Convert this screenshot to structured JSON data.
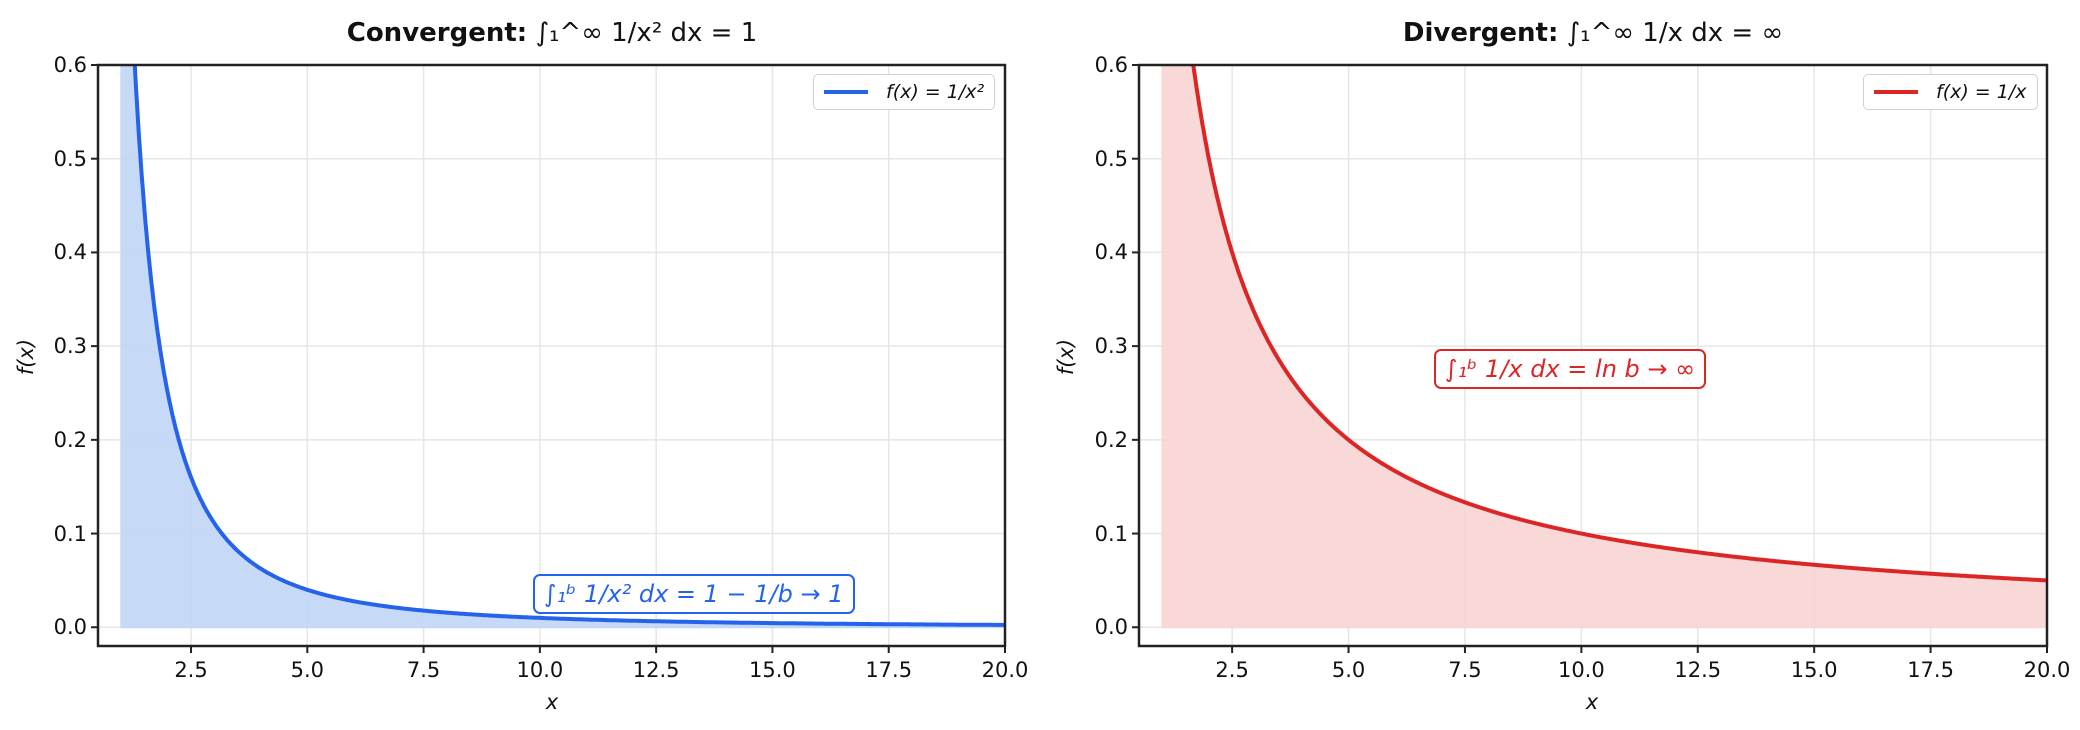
{
  "chart_data": [
    {
      "type": "area",
      "title": "Convergent: ∫₁^∞ 1/x² dx = 1",
      "title_bold": "Convergent:",
      "title_math": "∫₁^∞ (1/x²) dx = 1",
      "xlabel": "x",
      "ylabel": "f(x)",
      "xlim": [
        0.5,
        20.0
      ],
      "ylim": [
        -0.02,
        0.6
      ],
      "xticks": [
        "2.5",
        "5.0",
        "7.5",
        "10.0",
        "12.5",
        "15.0",
        "17.5",
        "20.0"
      ],
      "yticks": [
        "0.0",
        "0.1",
        "0.2",
        "0.3",
        "0.4",
        "0.5",
        "0.6"
      ],
      "grid": true,
      "legend": {
        "position": "upper right",
        "entries": [
          "f(x) = 1/x²"
        ]
      },
      "series": [
        {
          "name": "f(x) = 1/x²",
          "color": "#2563eb",
          "fill_color": "#c3d8f7",
          "function": "1/x^2",
          "x_start": 1,
          "x_end": 20,
          "x": [
            1,
            1.25,
            1.5,
            2,
            2.5,
            3,
            4,
            5,
            7.5,
            10,
            12.5,
            15,
            17.5,
            20
          ],
          "y": [
            1.0,
            0.64,
            0.444,
            0.25,
            0.16,
            0.111,
            0.0625,
            0.04,
            0.0178,
            0.01,
            0.0064,
            0.0044,
            0.0033,
            0.0025
          ]
        }
      ],
      "annotation": {
        "text": "∫₁ᵇ 1/x² dx = 1 − 1/b → 1",
        "color": "#2563eb"
      }
    },
    {
      "type": "area",
      "title": "Divergent: ∫₁^∞ 1/x dx = ∞",
      "title_bold": "Divergent:",
      "title_math": "∫₁^∞ (1/x) dx = ∞",
      "xlabel": "x",
      "ylabel": "f(x)",
      "xlim": [
        0.5,
        20.0
      ],
      "ylim": [
        -0.02,
        0.6
      ],
      "xticks": [
        "2.5",
        "5.0",
        "7.5",
        "10.0",
        "12.5",
        "15.0",
        "17.5",
        "20.0"
      ],
      "yticks": [
        "0.0",
        "0.1",
        "0.2",
        "0.3",
        "0.4",
        "0.5",
        "0.6"
      ],
      "grid": true,
      "legend": {
        "position": "upper right",
        "entries": [
          "f(x) = 1/x"
        ]
      },
      "series": [
        {
          "name": "f(x) = 1/x",
          "color": "#dc2626",
          "fill_color": "#f9d6d6",
          "function": "1/x",
          "x_start": 1,
          "x_end": 20,
          "x": [
            1,
            1.5,
            2,
            2.5,
            3,
            4,
            5,
            7.5,
            10,
            12.5,
            15,
            17.5,
            20
          ],
          "y": [
            1.0,
            0.667,
            0.5,
            0.4,
            0.333,
            0.25,
            0.2,
            0.133,
            0.1,
            0.08,
            0.0667,
            0.0571,
            0.05
          ]
        }
      ],
      "annotation": {
        "text": "∫₁ᵇ 1/x dx = ln b → ∞",
        "color": "#dc2626"
      }
    }
  ],
  "left": {
    "title_bold": "Convergent:",
    "title_math": "∫₁^∞ 1/x² dx = 1",
    "legend": "f(x) = 1/x²",
    "annotation": "∫₁ᵇ 1/x² dx = 1 − 1/b → 1",
    "xlabel": "x",
    "ylabel": "f(x)"
  },
  "right": {
    "title_bold": "Divergent:",
    "title_math": "∫₁^∞ 1/x dx = ∞",
    "legend": "f(x) = 1/x",
    "annotation": "∫₁ᵇ 1/x dx = ln b → ∞",
    "xlabel": "x",
    "ylabel": "f(x)"
  },
  "ticks": {
    "x": [
      "2.5",
      "5.0",
      "7.5",
      "10.0",
      "12.5",
      "15.0",
      "17.5",
      "20.0"
    ],
    "y": [
      "0.0",
      "0.1",
      "0.2",
      "0.3",
      "0.4",
      "0.5",
      "0.6"
    ]
  },
  "colors": {
    "blue": "#2563eb",
    "blue_fill": "#c3d8f7",
    "red": "#dc2626",
    "red_fill": "#f9d6d6",
    "grid": "#e6e6e6",
    "axis": "#222222"
  }
}
